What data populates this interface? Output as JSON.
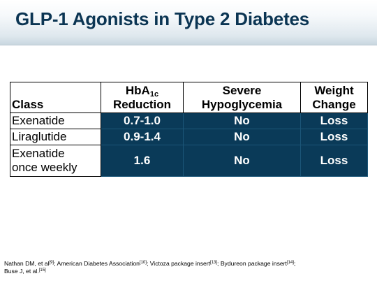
{
  "slide": {
    "title": "GLP-1 Agonists in Type 2 Diabetes"
  },
  "table": {
    "headers": {
      "class": "Class",
      "hba1c_line1_main": "HbA",
      "hba1c_line1_sub": "1c",
      "hba1c_line2": "Reduction",
      "hypo_line1": "Severe",
      "hypo_line2": "Hypoglycemia",
      "weight_line1": "Weight",
      "weight_line2": "Change"
    },
    "rows": [
      {
        "class_line1": "Exenatide",
        "class_line2": "",
        "hba1c": "0.7-1.0",
        "hypoglycemia": "No",
        "weight": "Loss"
      },
      {
        "class_line1": "Liraglutide",
        "class_line2": "",
        "hba1c": "0.9-1.4",
        "hypoglycemia": "No",
        "weight": "Loss"
      },
      {
        "class_line1": "Exenatide",
        "class_line2": "once weekly",
        "hba1c": "1.6",
        "hypoglycemia": "No",
        "weight": "Loss"
      }
    ]
  },
  "references": {
    "r1": "Nathan DM, et al",
    "r1_sup": "[9]",
    "r2": "; American Diabetes Association",
    "r2_sup": "[10]",
    "r3": "; Victoza package insert",
    "r3_sup": "[13]",
    "r4": "; Bydureon package insert",
    "r4_sup": "[14]",
    "r5": ";",
    "r6": "Buse J, et al.",
    "r6_sup": "[15]"
  },
  "colors": {
    "title": "#0b3553",
    "cell_fill": "#0a3a58",
    "cell_text": "#ffffff"
  }
}
